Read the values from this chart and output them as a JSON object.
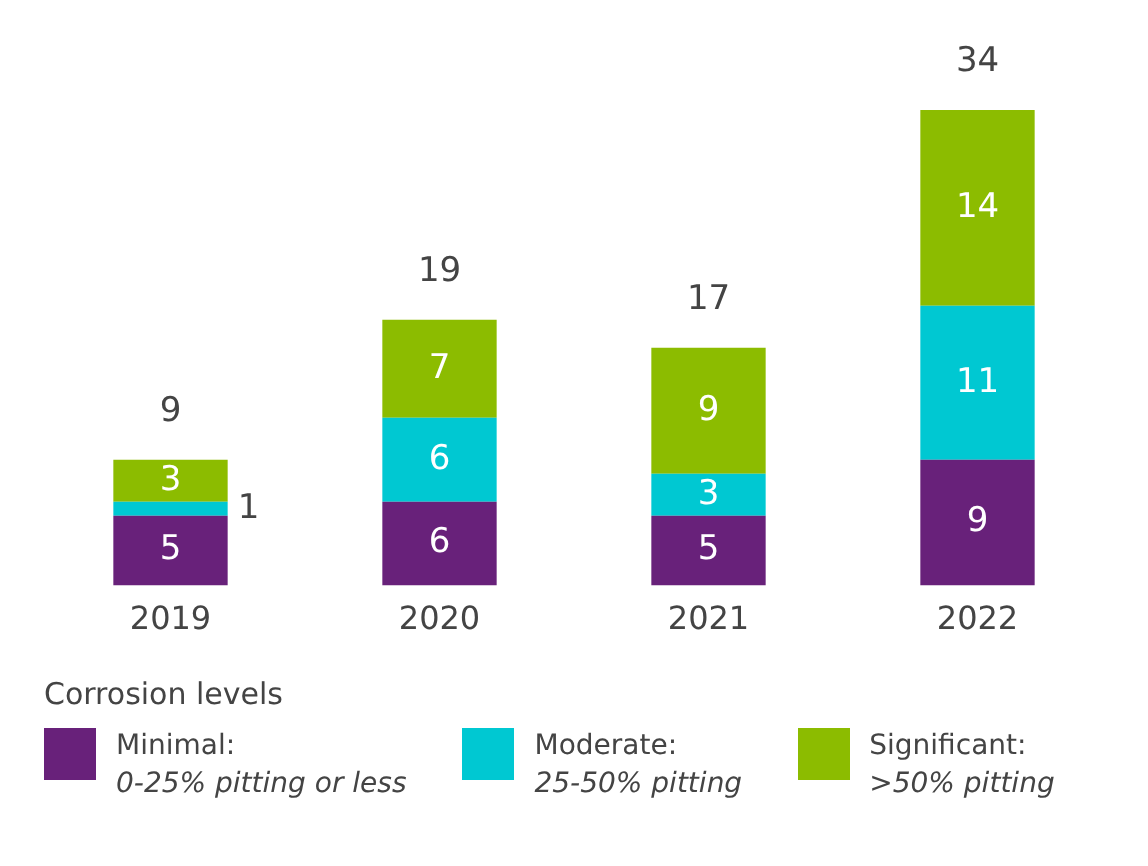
{
  "chart_data": {
    "type": "bar",
    "stacked": true,
    "categories": [
      "2019",
      "2020",
      "2021",
      "2022"
    ],
    "series": [
      {
        "name": "Minimal: 0-25% pitting or less",
        "color": "#68217a",
        "values": [
          5,
          6,
          5,
          9
        ]
      },
      {
        "name": "Moderate: 25-50% pitting",
        "color": "#00c8d2",
        "values": [
          1,
          6,
          3,
          11
        ]
      },
      {
        "name": "Significant: >50% pitting",
        "color": "#8cbc00",
        "values": [
          3,
          7,
          9,
          14
        ]
      }
    ],
    "totals": [
      "9",
      "19",
      "17",
      "34"
    ],
    "data_labels": true,
    "legend": "bottom",
    "legend_title": "Corrosion levels",
    "grid": false
  }
}
